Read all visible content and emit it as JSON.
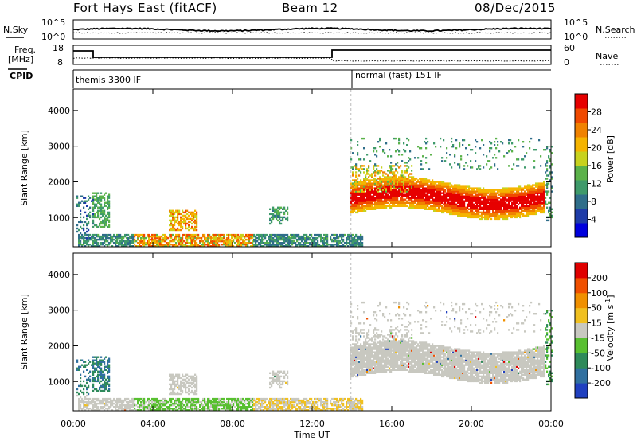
{
  "header": {
    "title": "Fort Hays East (fitACF)",
    "beam": "Beam 12",
    "date": "08/Dec/2015"
  },
  "panels": {
    "nsky_label": "N.Sky",
    "nsearch_label": "N.Search",
    "nsky_ticks": [
      "10^5",
      "10^0"
    ],
    "nsearch_ticks": [
      "10^5",
      "10^0"
    ],
    "freq_label_1": "Freq.",
    "freq_label_2": "[MHz]",
    "freq_ticks": [
      "18",
      "8"
    ],
    "nave_label": "Nave",
    "nave_ticks": [
      "60",
      "0"
    ],
    "cpid_label": "CPID",
    "cpid_segments": [
      "themis 3300 IF",
      "normal (fast) 151 IF"
    ]
  },
  "chart_data": [
    {
      "type": "heatmap",
      "name": "power",
      "ylabel": "Slant Range [km]",
      "yticks": [
        "4000",
        "3000",
        "2000",
        "1000"
      ],
      "ylim": [
        180,
        4600
      ],
      "xlim_hours": [
        0,
        24
      ],
      "colorbar": {
        "label": "Power [dB]",
        "ticks": [
          "28",
          "24",
          "20",
          "16",
          "12",
          "8",
          "4"
        ],
        "colors": [
          "#0000dd",
          "#1e3ca8",
          "#2f6e8a",
          "#3e9a6a",
          "#5bb24a",
          "#c8d21e",
          "#f5b400",
          "#f08200",
          "#f04a00",
          "#e60000"
        ]
      }
    },
    {
      "type": "heatmap",
      "name": "velocity",
      "ylabel": "Slant Range [km]",
      "yticks": [
        "4000",
        "3000",
        "2000",
        "1000"
      ],
      "ylim": [
        180,
        4600
      ],
      "xlim_hours": [
        0,
        24
      ],
      "xlabel": "Time UT",
      "xticks": [
        "00:00",
        "04:00",
        "08:00",
        "12:00",
        "16:00",
        "20:00",
        "00:00"
      ],
      "colorbar": {
        "label": "Velocity [m s",
        "label_sup": "-1",
        "label_end": "]",
        "ticks": [
          "200",
          "100",
          "50",
          "15",
          "-15",
          "-50",
          "-100",
          "-200"
        ],
        "colors": [
          "#2040c0",
          "#3070a0",
          "#2e8a5a",
          "#58c030",
          "#c8c8c0",
          "#f0c020",
          "#f09000",
          "#f05000",
          "#e00000"
        ]
      }
    }
  ]
}
